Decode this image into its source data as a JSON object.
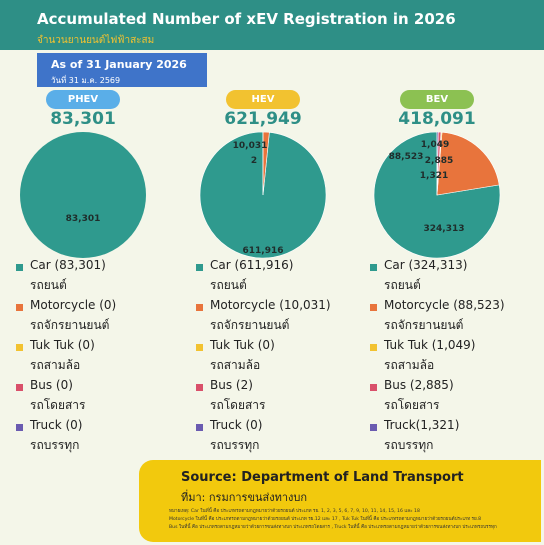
{
  "header": {
    "title": "Accumulated Number of xEV Registration in 2026",
    "subtitle": "จำนวนยานยนต์ไฟฟ้าสะสม"
  },
  "date": {
    "line1": "As of 31 January 2026",
    "line2": "วันที่ 31 ม.ค. 2569"
  },
  "colors": {
    "car": "#2f9a8e",
    "motorcycle": "#e8743c",
    "tuktuk": "#f2c230",
    "bus": "#d9506a",
    "truck": "#6a5bb0",
    "header": "#2e8f86",
    "total_text": "#2e8f86"
  },
  "chart_data": [
    {
      "type": "pie",
      "title": "PHEV",
      "total": "83,301",
      "pill_color": "#5aaee8",
      "slices": [
        {
          "label": "Car",
          "value": 83301
        },
        {
          "label": "Motorcycle",
          "value": 0
        },
        {
          "label": "Tuk Tuk",
          "value": 0
        },
        {
          "label": "Bus",
          "value": 0
        },
        {
          "label": "Truck",
          "value": 0
        }
      ],
      "data_labels": [
        {
          "category": "Car",
          "text": "83,301"
        }
      ]
    },
    {
      "type": "pie",
      "title": "HEV",
      "total": "621,949",
      "pill_color": "#f2c230",
      "slices": [
        {
          "label": "Car",
          "value": 611916
        },
        {
          "label": "Motorcycle",
          "value": 10031
        },
        {
          "label": "Tuk Tuk",
          "value": 0
        },
        {
          "label": "Bus",
          "value": 2
        },
        {
          "label": "Truck",
          "value": 0
        }
      ],
      "data_labels": [
        {
          "category": "Car",
          "text": "611,916"
        },
        {
          "category": "Motorcycle",
          "text": "10,031"
        },
        {
          "category": "Bus",
          "text": "2"
        }
      ]
    },
    {
      "type": "pie",
      "title": "BEV",
      "total": "418,091",
      "pill_color": "#8cc152",
      "slices": [
        {
          "label": "Car",
          "value": 324313
        },
        {
          "label": "Motorcycle",
          "value": 88523
        },
        {
          "label": "Tuk Tuk",
          "value": 1049
        },
        {
          "label": "Bus",
          "value": 2885
        },
        {
          "label": "Truck",
          "value": 1321
        }
      ],
      "data_labels": [
        {
          "category": "Car",
          "text": "324,313"
        },
        {
          "category": "Motorcycle",
          "text": "88,523"
        },
        {
          "category": "Tuk Tuk",
          "text": "1,049"
        },
        {
          "category": "Bus",
          "text": "2,885"
        },
        {
          "category": "Truck",
          "text": "1,321"
        }
      ]
    }
  ],
  "legends": [
    [
      {
        "en": "Car (83,301)",
        "th": "รถยนต์",
        "key": "car"
      },
      {
        "en": "Motorcycle (0)",
        "th": "รถจักรยานยนต์",
        "key": "motorcycle"
      },
      {
        "en": "Tuk Tuk (0)",
        "th": "รถสามล้อ",
        "key": "tuktuk"
      },
      {
        "en": "Bus (0)",
        "th": "รถโดยสาร",
        "key": "bus"
      },
      {
        "en": "Truck (0)",
        "th": "รถบรรทุก",
        "key": "truck"
      }
    ],
    [
      {
        "en": "Car (611,916)",
        "th": "รถยนต์",
        "key": "car"
      },
      {
        "en": "Motorcycle (10,031)",
        "th": "รถจักรยานยนต์",
        "key": "motorcycle"
      },
      {
        "en": "Tuk Tuk (0)",
        "th": "รถสามล้อ",
        "key": "tuktuk"
      },
      {
        "en": "Bus (2)",
        "th": "รถโดยสาร",
        "key": "bus"
      },
      {
        "en": "Truck (0)",
        "th": "รถบรรทุก",
        "key": "truck"
      }
    ],
    [
      {
        "en": "Car (324,313)",
        "th": "รถยนต์",
        "key": "car"
      },
      {
        "en": "Motorcycle (88,523)",
        "th": "รถจักรยานยนต์",
        "key": "motorcycle"
      },
      {
        "en": "Tuk Tuk (1,049)",
        "th": "รถสามล้อ",
        "key": "tuktuk"
      },
      {
        "en": "Bus (2,885)",
        "th": "รถโดยสาร",
        "key": "bus"
      },
      {
        "en": "Truck(1,321)",
        "th": "รถบรรทุก",
        "key": "truck"
      }
    ]
  ],
  "source": {
    "title": "Source: Department of Land Transport",
    "th": "ที่มา: กรมการขนส่งทางบก",
    "notes": [
      "หมายเหตุ: Car ในที่นี้ คือ ประเภทรถตามกฎหมายว่าด้วยรถยนต์ ประเภท รย. 1, 2, 3, 5, 6, 7, 9, 10, 11, 14, 15, 16 และ 18",
      "Motorcycle ในที่นี้ คือ ประเภทรถตามกฎหมายว่าด้วยรถยนต์ ประเภท รย.12 และ 17 , Tuk Tuk ในที่นี้ คือ ประเภทรถตามกฎหมายว่าด้วยรถยนต์ประเภท รย.8",
      "Bus ในที่นี้ คือ ประเภทรถตามกฎหมายว่าด้วยการขนส่งทางบก ประเภทรถโดยสาร , Truck ในที่นี้ คือ ประเภทรถตามกฎหมายว่าด้วยการขนส่งทางบก ประเภทรถบรรทุก"
    ]
  }
}
